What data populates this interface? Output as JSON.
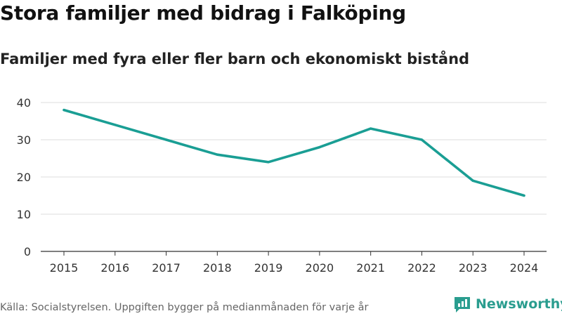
{
  "header": {
    "title": "Stora familjer med bidrag i Falköping",
    "subtitle": "Familjer med fyra eller fler barn och ekonomiskt bistånd"
  },
  "footer": {
    "source": "Källa: Socialstyrelsen. Uppgiften bygger på medianmånaden för varje år",
    "brand": "Newsworthy",
    "brand_icon": "newsworthy-logo-icon"
  },
  "colors": {
    "line": "#1a9e94",
    "grid": "#dddddd",
    "axis": "#333333",
    "brand": "#2a9d8f"
  },
  "chart_data": {
    "type": "line",
    "x": [
      "2015",
      "2016",
      "2017",
      "2018",
      "2019",
      "2020",
      "2021",
      "2022",
      "2023",
      "2024"
    ],
    "series": [
      {
        "values": [
          38,
          34,
          30,
          26,
          24,
          28,
          33,
          30,
          19,
          15
        ]
      }
    ],
    "ylim": [
      0,
      40
    ],
    "yticks": [
      0,
      10,
      20,
      30,
      40
    ],
    "grid": true,
    "xlabel": "",
    "ylabel": ""
  }
}
